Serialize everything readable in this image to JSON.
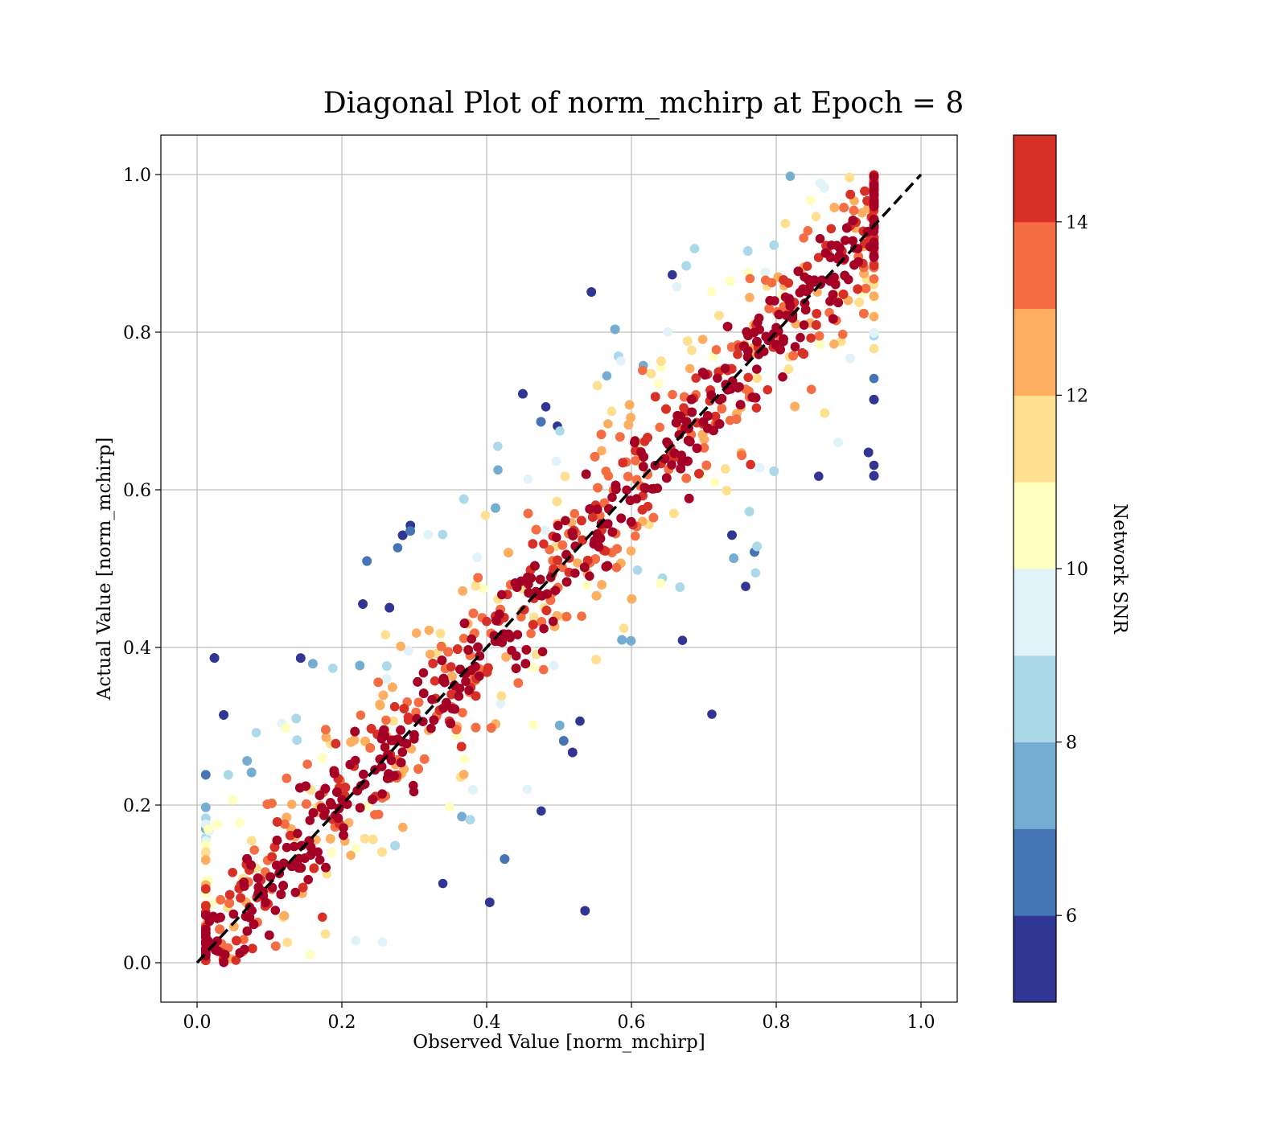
{
  "chart_data": {
    "type": "scatter",
    "title": "Diagonal Plot of norm_mchirp at Epoch = 8",
    "xlabel": "Observed Value [norm_mchirp]",
    "ylabel": "Actual Value [norm_mchirp]",
    "xlim": [
      -0.05,
      1.05
    ],
    "ylim": [
      -0.05,
      1.05
    ],
    "xticks": [
      0.0,
      0.2,
      0.4,
      0.6,
      0.8,
      1.0
    ],
    "yticks": [
      0.0,
      0.2,
      0.4,
      0.6,
      0.8,
      1.0
    ],
    "grid": true,
    "reference_line": {
      "x": [
        0.0,
        1.0
      ],
      "y": [
        0.0,
        1.0
      ],
      "style": "dashed",
      "color": "#000000"
    },
    "point_description": "Dense scatter of points clustered around the diagonal y = x for x in [0.01, 0.94], y in [0, 1]; points close to the diagonal have high Network SNR (dark red), points far from the diagonal have low Network SNR (blue).",
    "colorbar": {
      "label": "Network SNR",
      "range": [
        5,
        15
      ],
      "ticks": [
        6,
        8,
        10,
        12,
        14
      ],
      "bins": [
        5,
        6,
        7,
        8,
        9,
        10,
        11,
        12,
        13,
        14,
        15
      ],
      "colors": [
        "#313695",
        "#4575b4",
        "#74add1",
        "#abd9e9",
        "#e0f3f8",
        "#ffffbf",
        "#fee090",
        "#fdae61",
        "#f46d43",
        "#d73027",
        "#a50026"
      ]
    }
  }
}
